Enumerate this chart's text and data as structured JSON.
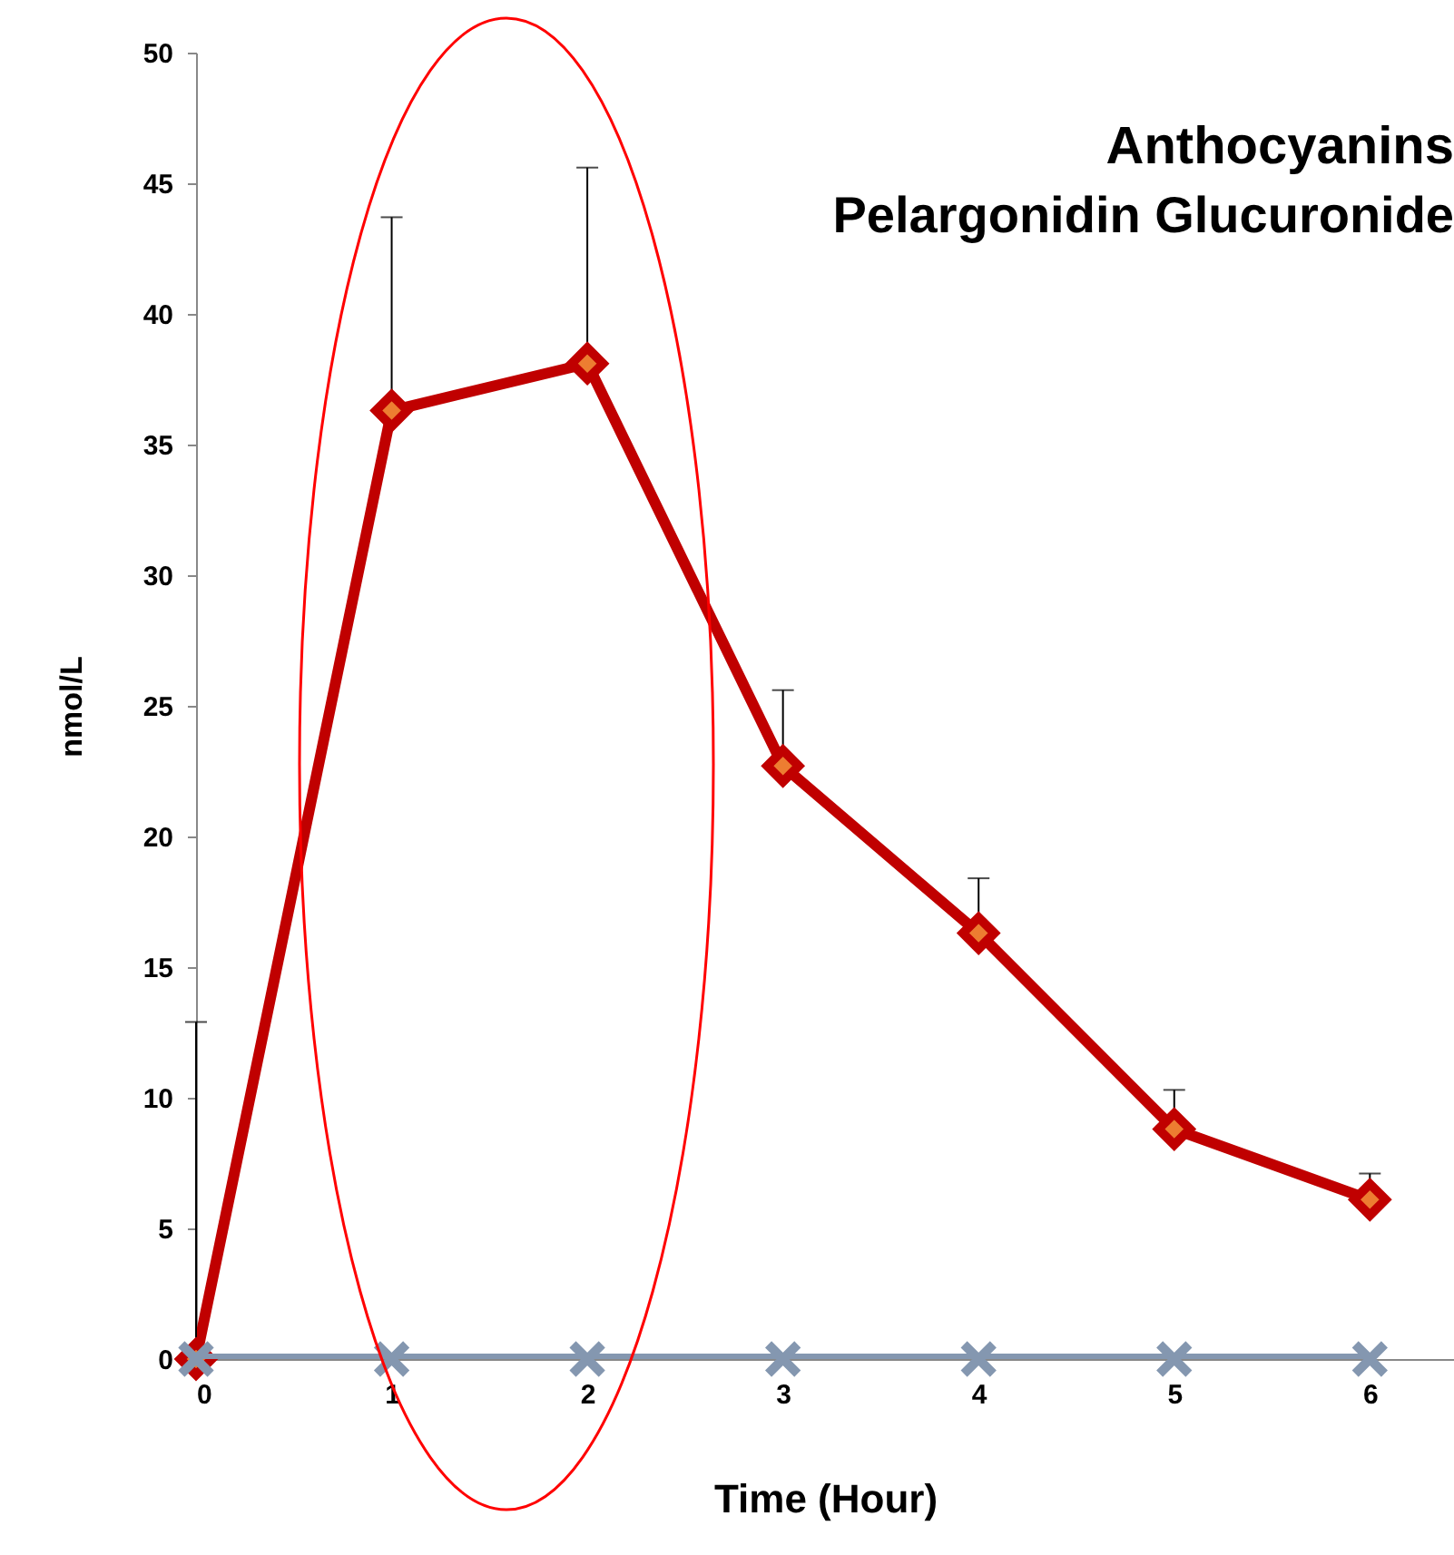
{
  "chart_data": {
    "type": "line",
    "title": "Anthocyanins",
    "subtitle": "Pelargonidin Glucuronide",
    "xlabel": "Time (Hour)",
    "ylabel": "nmol/L",
    "x": [
      0,
      1,
      2,
      3,
      4,
      5,
      6
    ],
    "xlim": [
      0,
      6.43
    ],
    "xticks": [
      0,
      1,
      2,
      3,
      4,
      5,
      6
    ],
    "ylim": [
      0,
      50
    ],
    "yticks": [
      0,
      5,
      10,
      15,
      20,
      25,
      30,
      35,
      40,
      45,
      50
    ],
    "series": [
      {
        "color": "#c00000",
        "marker": "diamond",
        "values": [
          0,
          36.3,
          38.1,
          22.7,
          16.3,
          8.8,
          6.1
        ],
        "errors": [
          [
            0,
            12.9
          ],
          [
            36.3,
            43.7
          ],
          [
            38.1,
            45.6
          ],
          [
            22.7,
            25.6
          ],
          [
            16.3,
            18.4
          ],
          [
            8.8,
            10.3
          ],
          [
            6.1,
            7.1
          ]
        ]
      },
      {
        "color": "#8497b0",
        "marker": "cross",
        "values": [
          0,
          0,
          0,
          0,
          0,
          0,
          0
        ]
      }
    ],
    "grid": false
  }
}
